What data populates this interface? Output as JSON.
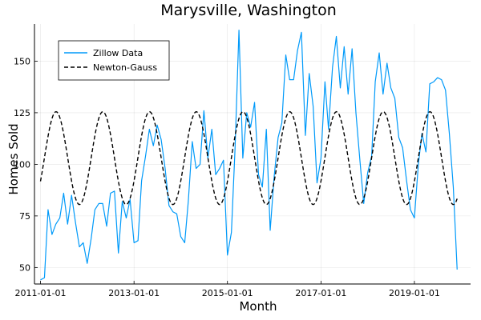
{
  "chart_data": {
    "type": "line",
    "title": "Marysville, Washington",
    "xlabel": "Month",
    "ylabel": "Homes Sold",
    "x_ticks": [
      "2011-01-01",
      "2013-01-01",
      "2015-01-01",
      "2017-01-01",
      "2019-01-01"
    ],
    "y_ticks": [
      50,
      75,
      100,
      125,
      150
    ],
    "xlim": [
      "2010-11-15",
      "2020-03-15"
    ],
    "ylim": [
      42,
      168
    ],
    "grid": true,
    "legend_position": "top-left",
    "series": [
      {
        "name": "Zillow Data",
        "color": "#009AFA",
        "dash": "solid",
        "x": [
          "2011-01-01",
          "2011-02-01",
          "2011-03-01",
          "2011-04-01",
          "2011-05-01",
          "2011-06-01",
          "2011-07-01",
          "2011-08-01",
          "2011-09-01",
          "2011-10-01",
          "2011-11-01",
          "2011-12-01",
          "2012-01-01",
          "2012-02-01",
          "2012-03-01",
          "2012-04-01",
          "2012-05-01",
          "2012-06-01",
          "2012-07-01",
          "2012-08-01",
          "2012-09-01",
          "2012-10-01",
          "2012-11-01",
          "2012-12-01",
          "2013-01-01",
          "2013-02-01",
          "2013-03-01",
          "2013-04-01",
          "2013-05-01",
          "2013-06-01",
          "2013-07-01",
          "2013-08-01",
          "2013-09-01",
          "2013-10-01",
          "2013-11-01",
          "2013-12-01",
          "2014-01-01",
          "2014-02-01",
          "2014-03-01",
          "2014-04-01",
          "2014-05-01",
          "2014-06-01",
          "2014-07-01",
          "2014-08-01",
          "2014-09-01",
          "2014-10-01",
          "2014-11-01",
          "2014-12-01",
          "2015-01-01",
          "2015-02-01",
          "2015-03-01",
          "2015-04-01",
          "2015-05-01",
          "2015-06-01",
          "2015-07-01",
          "2015-08-01",
          "2015-09-01",
          "2015-10-01",
          "2015-11-01",
          "2015-12-01",
          "2016-01-01",
          "2016-02-01",
          "2016-03-01",
          "2016-04-01",
          "2016-05-01",
          "2016-06-01",
          "2016-07-01",
          "2016-08-01",
          "2016-09-01",
          "2016-10-01",
          "2016-11-01",
          "2016-12-01",
          "2017-01-01",
          "2017-02-01",
          "2017-03-01",
          "2017-04-01",
          "2017-05-01",
          "2017-06-01",
          "2017-07-01",
          "2017-08-01",
          "2017-09-01",
          "2017-10-01",
          "2017-11-01",
          "2017-12-01",
          "2018-01-01",
          "2018-02-01",
          "2018-03-01",
          "2018-04-01",
          "2018-05-01",
          "2018-06-01",
          "2018-07-01",
          "2018-08-01",
          "2018-09-01",
          "2018-10-01",
          "2018-11-01",
          "2018-12-01",
          "2019-01-01",
          "2019-02-01",
          "2019-03-01",
          "2019-04-01",
          "2019-05-01",
          "2019-06-01",
          "2019-07-01",
          "2019-08-01",
          "2019-09-01",
          "2019-10-01",
          "2019-11-01",
          "2019-12-01"
        ],
        "values": [
          44,
          45,
          78,
          66,
          71,
          74,
          86,
          71,
          85,
          72,
          60,
          62,
          52,
          64,
          78,
          81,
          81,
          70,
          86,
          87,
          57,
          82,
          74,
          83,
          62,
          63,
          92,
          104,
          117,
          109,
          119,
          112,
          98,
          80,
          77,
          76,
          65,
          62,
          82,
          111,
          98,
          100,
          126,
          103,
          117,
          95,
          98,
          102,
          56,
          67,
          107,
          165,
          103,
          125,
          118,
          130,
          95,
          89,
          117,
          68,
          94,
          113,
          120,
          153,
          141,
          141,
          155,
          164,
          114,
          144,
          128,
          91,
          103,
          140,
          117,
          147,
          162,
          137,
          157,
          134,
          156,
          125,
          102,
          81,
          96,
          104,
          140,
          154,
          134,
          149,
          137,
          132,
          113,
          108,
          92,
          78,
          74,
          100,
          115,
          106,
          139,
          140,
          142,
          141,
          136,
          115,
          89,
          49
        ]
      },
      {
        "name": "Newton-Gauss",
        "color": "#000000",
        "dash": "dashed",
        "model": {
          "mean": 103,
          "amplitude": 22.5,
          "period_months": 12,
          "peak_month": 4
        }
      }
    ]
  }
}
